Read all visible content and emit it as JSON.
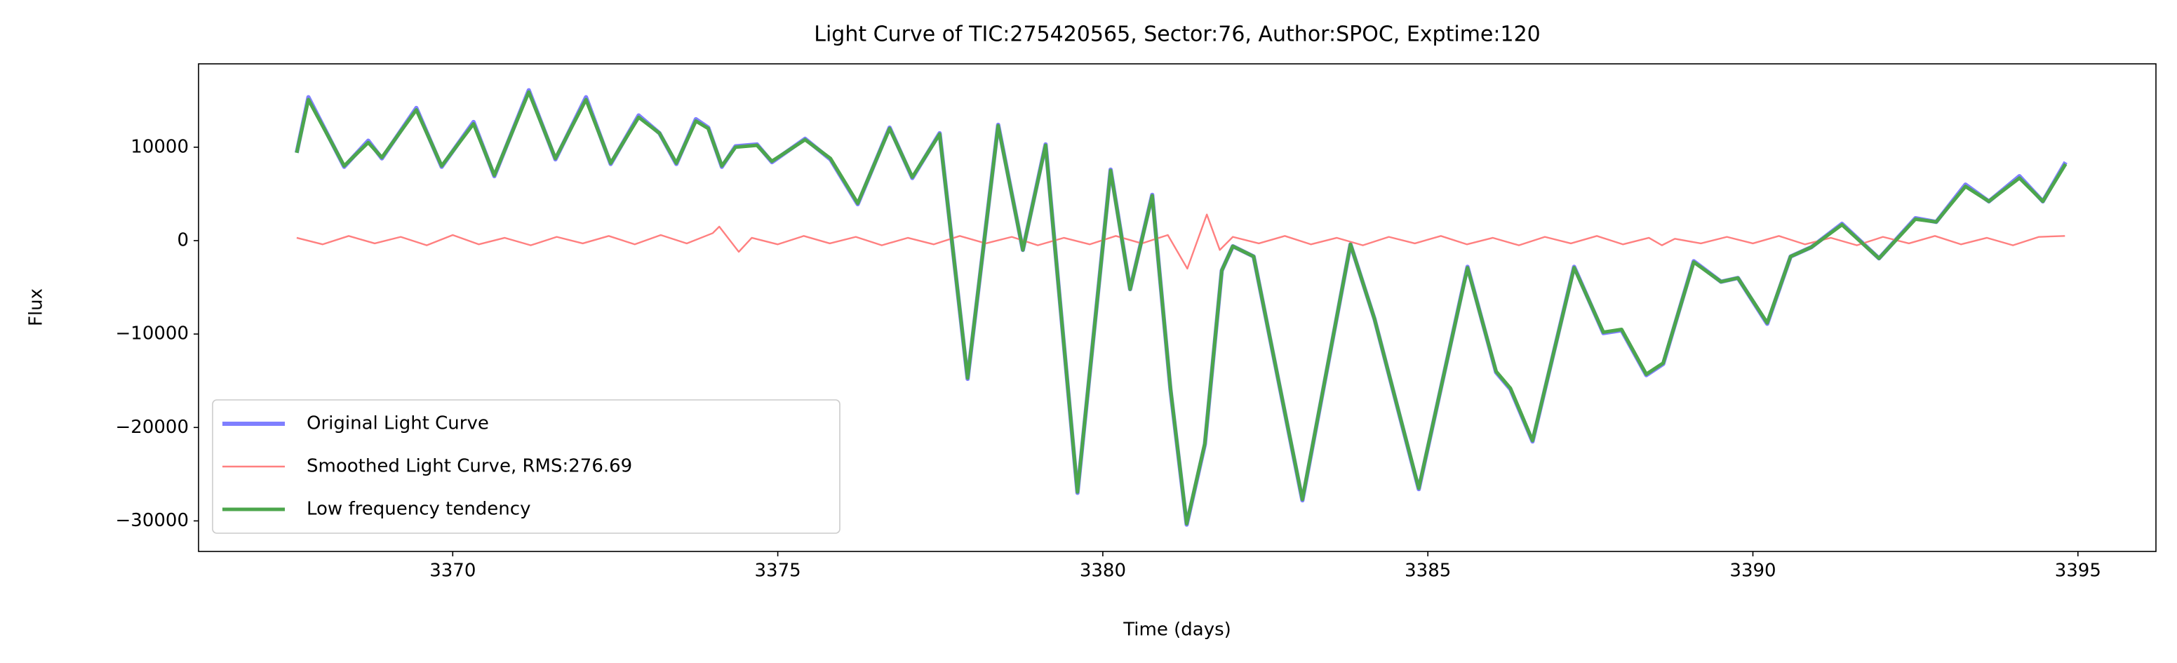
{
  "chart_data": {
    "type": "line",
    "title": "Light Curve of TIC:275420565, Sector:76, Author:SPOC, Exptime:120",
    "x_label": "Time (days)",
    "y_label": "Flux",
    "xlim": [
      3366.09,
      3396.2
    ],
    "ylim": [
      -33271,
      18922
    ],
    "xticks": [
      3370,
      3375,
      3380,
      3385,
      3390,
      3395
    ],
    "yticks": [
      {
        "value": -30000,
        "label": "−30000"
      },
      {
        "value": -20000,
        "label": "−20000"
      },
      {
        "value": -10000,
        "label": "−10000"
      },
      0,
      10000
    ],
    "grid": false,
    "legend": "lower left",
    "series": [
      {
        "name": "Original Light Curve",
        "color": "#7f7fff",
        "width": 6,
        "x": [
          3367.6,
          3367.78,
          3368.33,
          3368.7,
          3368.91,
          3369.44,
          3369.83,
          3370.32,
          3370.64,
          3371.17,
          3371.58,
          3372.05,
          3372.43,
          3372.86,
          3373.18,
          3373.44,
          3373.74,
          3373.93,
          3374.14,
          3374.35,
          3374.68,
          3374.91,
          3375.42,
          3375.81,
          3376.23,
          3376.72,
          3377.07,
          3377.49,
          3377.92,
          3378.39,
          3378.77,
          3379.12,
          3379.61,
          3380.12,
          3380.42,
          3380.76,
          3381.04,
          3381.29,
          3381.57,
          3381.83,
          3382.0,
          3382.32,
          3383.07,
          3383.81,
          3384.18,
          3384.86,
          3385.61,
          3386.05,
          3386.27,
          3386.61,
          3387.25,
          3387.7,
          3387.98,
          3388.36,
          3388.62,
          3389.09,
          3389.51,
          3389.77,
          3390.22,
          3390.58,
          3390.9,
          3391.37,
          3391.94,
          3392.5,
          3392.82,
          3393.27,
          3393.63,
          3394.1,
          3394.46,
          3394.81
        ],
        "values": [
          9400,
          15350,
          7900,
          10700,
          8800,
          14200,
          7900,
          12700,
          6900,
          16100,
          8700,
          15350,
          8200,
          13400,
          11500,
          8200,
          13000,
          12100,
          7900,
          10100,
          10300,
          8400,
          10900,
          8700,
          3900,
          12100,
          6700,
          11500,
          -14800,
          12400,
          -1000,
          10300,
          -27000,
          7600,
          -5200,
          4900,
          -15900,
          -30400,
          -21800,
          -3200,
          -600,
          -1700,
          -27800,
          -400,
          -8400,
          -26600,
          -2800,
          -14100,
          -15900,
          -21500,
          -2800,
          -9900,
          -9600,
          -14400,
          -13200,
          -2200,
          -4400,
          -4000,
          -8900,
          -1700,
          -700,
          1800,
          -1900,
          2400,
          2000,
          6000,
          4200,
          6900,
          4200,
          8400
        ]
      },
      {
        "name": "Smoothed Light Curve, RMS:276.69",
        "color": "#ff8080",
        "width": 2.4,
        "x": [
          3367.6,
          3368.0,
          3368.4,
          3368.8,
          3369.2,
          3369.6,
          3370.0,
          3370.4,
          3370.8,
          3371.2,
          3371.6,
          3372.0,
          3372.4,
          3372.8,
          3373.2,
          3373.6,
          3374.0,
          3374.1,
          3374.4,
          3374.6,
          3375.0,
          3375.4,
          3375.8,
          3376.2,
          3376.6,
          3377.0,
          3377.4,
          3377.8,
          3378.2,
          3378.6,
          3379.0,
          3379.4,
          3379.8,
          3380.2,
          3380.6,
          3381.0,
          3381.3,
          3381.6,
          3381.8,
          3382.0,
          3382.4,
          3382.8,
          3383.2,
          3383.6,
          3384.0,
          3384.4,
          3384.8,
          3385.2,
          3385.6,
          3386.0,
          3386.4,
          3386.8,
          3387.2,
          3387.6,
          3388.0,
          3388.4,
          3388.6,
          3388.8,
          3389.2,
          3389.6,
          3390.0,
          3390.4,
          3390.8,
          3391.2,
          3391.6,
          3392.0,
          3392.4,
          3392.8,
          3393.2,
          3393.6,
          3394.0,
          3394.4,
          3394.8
        ],
        "values": [
          300,
          -400,
          500,
          -300,
          400,
          -500,
          600,
          -400,
          300,
          -500,
          400,
          -300,
          500,
          -400,
          600,
          -300,
          800,
          1500,
          -1200,
          300,
          -400,
          500,
          -300,
          400,
          -500,
          300,
          -400,
          500,
          -300,
          400,
          -500,
          300,
          -400,
          500,
          -300,
          600,
          -3000,
          2800,
          -1000,
          400,
          -300,
          500,
          -400,
          300,
          -500,
          400,
          -300,
          500,
          -400,
          300,
          -500,
          400,
          -300,
          500,
          -400,
          300,
          -500,
          200,
          -300,
          400,
          -300,
          500,
          -400,
          300,
          -500,
          400,
          -300,
          500,
          -400,
          300,
          -500,
          400,
          500
        ]
      },
      {
        "name": "Low frequency tendency",
        "color": "#4ca64c",
        "width": 5,
        "x": [
          3367.6,
          3367.78,
          3368.33,
          3368.7,
          3368.91,
          3369.44,
          3369.83,
          3370.32,
          3370.64,
          3371.17,
          3371.58,
          3372.05,
          3372.43,
          3372.86,
          3373.18,
          3373.44,
          3373.74,
          3373.93,
          3374.14,
          3374.35,
          3374.68,
          3374.91,
          3375.42,
          3375.81,
          3376.23,
          3376.72,
          3377.07,
          3377.49,
          3377.92,
          3378.39,
          3378.77,
          3379.12,
          3379.61,
          3380.12,
          3380.42,
          3380.76,
          3381.04,
          3381.29,
          3381.57,
          3381.83,
          3382.0,
          3382.32,
          3383.07,
          3383.81,
          3384.18,
          3384.86,
          3385.61,
          3386.05,
          3386.27,
          3386.61,
          3387.25,
          3387.7,
          3387.98,
          3388.36,
          3388.62,
          3389.09,
          3389.51,
          3389.77,
          3390.22,
          3390.58,
          3390.9,
          3391.37,
          3391.94,
          3392.5,
          3392.82,
          3393.27,
          3393.63,
          3394.1,
          3394.46,
          3394.81
        ],
        "values": [
          9400,
          15100,
          8000,
          10500,
          8900,
          14000,
          8000,
          12500,
          7000,
          15900,
          8800,
          15100,
          8300,
          13200,
          11500,
          8300,
          12800,
          12000,
          8000,
          10000,
          10200,
          8500,
          10800,
          8800,
          4000,
          12000,
          6800,
          11400,
          -14700,
          12300,
          -1000,
          10200,
          -26900,
          7500,
          -5200,
          4800,
          -15800,
          -30300,
          -21700,
          -3200,
          -600,
          -1700,
          -27700,
          -400,
          -8400,
          -26500,
          -2900,
          -14000,
          -15800,
          -21400,
          -2900,
          -9800,
          -9500,
          -14300,
          -13100,
          -2300,
          -4400,
          -4000,
          -8800,
          -1700,
          -700,
          1700,
          -1900,
          2300,
          2000,
          5800,
          4200,
          6700,
          4200,
          8200
        ]
      }
    ]
  }
}
